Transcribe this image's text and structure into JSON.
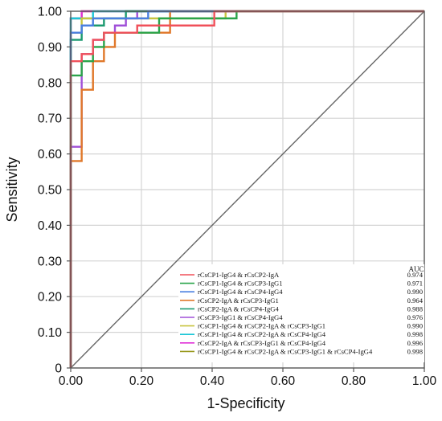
{
  "chart_data": {
    "type": "line",
    "title": "",
    "xlabel": "1-Specificity",
    "ylabel": "Sensitivity",
    "xlim": [
      0,
      1
    ],
    "ylim": [
      0,
      1
    ],
    "x_ticks": [
      "0.00",
      "0.20",
      "0.40",
      "0.60",
      "0.80",
      "1.00"
    ],
    "y_ticks": [
      "0",
      "0.10",
      "0.20",
      "0.30",
      "0.40",
      "0.50",
      "0.60",
      "0.70",
      "0.80",
      "0.90",
      "1.00"
    ],
    "grid": true,
    "legend_placement": "bottom-right",
    "legend_header": "AUC",
    "reference_line": {
      "color": "#666666",
      "points": [
        [
          0,
          0
        ],
        [
          1,
          1
        ]
      ]
    },
    "series": [
      {
        "name": "rCsCP1-IgG4 & rCsCP2-IgA",
        "auc": "0.974",
        "color": "#f0505a",
        "points": [
          [
            0,
            0
          ],
          [
            0,
            0.86
          ],
          [
            0.031,
            0.86
          ],
          [
            0.031,
            0.88
          ],
          [
            0.063,
            0.88
          ],
          [
            0.063,
            0.92
          ],
          [
            0.094,
            0.92
          ],
          [
            0.094,
            0.94
          ],
          [
            0.188,
            0.94
          ],
          [
            0.188,
            0.96
          ],
          [
            0.406,
            0.96
          ],
          [
            0.406,
            1
          ],
          [
            1,
            1
          ]
        ]
      },
      {
        "name": "rCsCP1-IgG4 & rCsCP3-IgG1",
        "auc": "0.971",
        "color": "#2aa44a",
        "points": [
          [
            0,
            0
          ],
          [
            0,
            0.82
          ],
          [
            0.031,
            0.82
          ],
          [
            0.031,
            0.86
          ],
          [
            0.063,
            0.86
          ],
          [
            0.063,
            0.9
          ],
          [
            0.094,
            0.9
          ],
          [
            0.094,
            0.94
          ],
          [
            0.25,
            0.94
          ],
          [
            0.25,
            0.98
          ],
          [
            0.469,
            0.98
          ],
          [
            0.469,
            1
          ],
          [
            1,
            1
          ]
        ]
      },
      {
        "name": "rCsCP1-IgG4 & rCsCP4-IgG4",
        "auc": "0.990",
        "color": "#4a7fe0",
        "points": [
          [
            0,
            0
          ],
          [
            0,
            0.94
          ],
          [
            0.031,
            0.94
          ],
          [
            0.031,
            0.96
          ],
          [
            0.063,
            0.96
          ],
          [
            0.063,
            0.98
          ],
          [
            0.219,
            0.98
          ],
          [
            0.219,
            1
          ],
          [
            1,
            1
          ]
        ]
      },
      {
        "name": "rCsCP2-IgA & rCsCP3-IgG1",
        "auc": "0.964",
        "color": "#e0782a",
        "points": [
          [
            0,
            0
          ],
          [
            0,
            0.58
          ],
          [
            0.031,
            0.58
          ],
          [
            0.031,
            0.78
          ],
          [
            0.063,
            0.78
          ],
          [
            0.063,
            0.86
          ],
          [
            0.094,
            0.86
          ],
          [
            0.094,
            0.9
          ],
          [
            0.125,
            0.9
          ],
          [
            0.125,
            0.94
          ],
          [
            0.281,
            0.94
          ],
          [
            0.281,
            1
          ],
          [
            1,
            1
          ]
        ]
      },
      {
        "name": "rCsCP2-IgA & rCsCP4-IgG4",
        "auc": "0.988",
        "color": "#1c9a70",
        "points": [
          [
            0,
            0
          ],
          [
            0,
            0.92
          ],
          [
            0.031,
            0.92
          ],
          [
            0.031,
            0.96
          ],
          [
            0.094,
            0.96
          ],
          [
            0.094,
            0.98
          ],
          [
            0.156,
            0.98
          ],
          [
            0.156,
            1
          ],
          [
            1,
            1
          ]
        ]
      },
      {
        "name": "rCsCP3-IgG1 & rCsCP4-IgG4",
        "auc": "0.976",
        "color": "#a050d8",
        "points": [
          [
            0,
            0
          ],
          [
            0,
            0.62
          ],
          [
            0.031,
            0.62
          ],
          [
            0.031,
            0.88
          ],
          [
            0.063,
            0.88
          ],
          [
            0.063,
            0.92
          ],
          [
            0.094,
            0.92
          ],
          [
            0.094,
            0.94
          ],
          [
            0.125,
            0.94
          ],
          [
            0.125,
            0.96
          ],
          [
            0.156,
            0.96
          ],
          [
            0.156,
            0.98
          ],
          [
            0.188,
            0.98
          ],
          [
            0.188,
            1
          ],
          [
            1,
            1
          ]
        ]
      },
      {
        "name": "rCsCP1-IgG4 & rCsCP2-IgA & rCsCP3-IgG1",
        "auc": "0.990",
        "color": "#c8c440",
        "points": [
          [
            0,
            0
          ],
          [
            0,
            0.94
          ],
          [
            0.031,
            0.94
          ],
          [
            0.031,
            0.98
          ],
          [
            0.438,
            0.98
          ],
          [
            0.438,
            1
          ],
          [
            1,
            1
          ]
        ]
      },
      {
        "name": "rCsCP1-IgG4 & rCsCP2-IgA & rCsCP4-IgG4",
        "auc": "0.998",
        "color": "#1cc6d6",
        "points": [
          [
            0,
            0
          ],
          [
            0,
            0.98
          ],
          [
            0.063,
            0.98
          ],
          [
            0.063,
            1
          ],
          [
            1,
            1
          ]
        ]
      },
      {
        "name": "rCsCP2-IgA & rCsCP3-IgG1 & rCsCP4-IgG4",
        "auc": "0.996",
        "color": "#e030d8",
        "points": [
          [
            0,
            0
          ],
          [
            0,
            0.98
          ],
          [
            0.031,
            0.98
          ],
          [
            0.031,
            1
          ],
          [
            1,
            1
          ]
        ]
      },
      {
        "name": "rCsCP1-IgG4 & rCsCP2-IgA & rCsCP3-IgG1 & rCsCP4-IgG4",
        "auc": "0.998",
        "color": "#9a9a20",
        "points": [
          [
            0,
            0
          ],
          [
            0,
            0.98
          ],
          [
            0.031,
            0.98
          ],
          [
            0.031,
            1
          ],
          [
            1,
            1
          ]
        ]
      }
    ]
  }
}
